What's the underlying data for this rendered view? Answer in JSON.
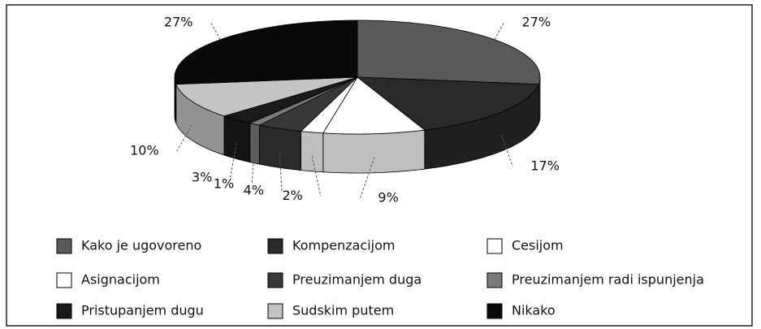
{
  "chart_data": {
    "type": "pie",
    "categories": [
      "Kako je ugovoreno",
      "Kompenzacijom",
      "Cesijom",
      "Asignacijom",
      "Preuzimanjem duga",
      "Preuzimanjem radi ispunjenja",
      "Pristupanjem dugu",
      "Sudskim putem",
      "Nikako"
    ],
    "values": [
      27,
      17,
      9,
      2,
      4,
      1,
      3,
      10,
      27
    ],
    "value_labels": [
      "27%",
      "17%",
      "9%",
      "2%",
      "4%",
      "1%",
      "3%",
      "10%",
      "27%"
    ],
    "colors": [
      "#5a5a5a",
      "#2a2a2a",
      "#ffffff",
      "#ffffff",
      "#383838",
      "#7a7a7a",
      "#1a1a1a",
      "#c4c4c4",
      "#0a0a0a"
    ]
  }
}
